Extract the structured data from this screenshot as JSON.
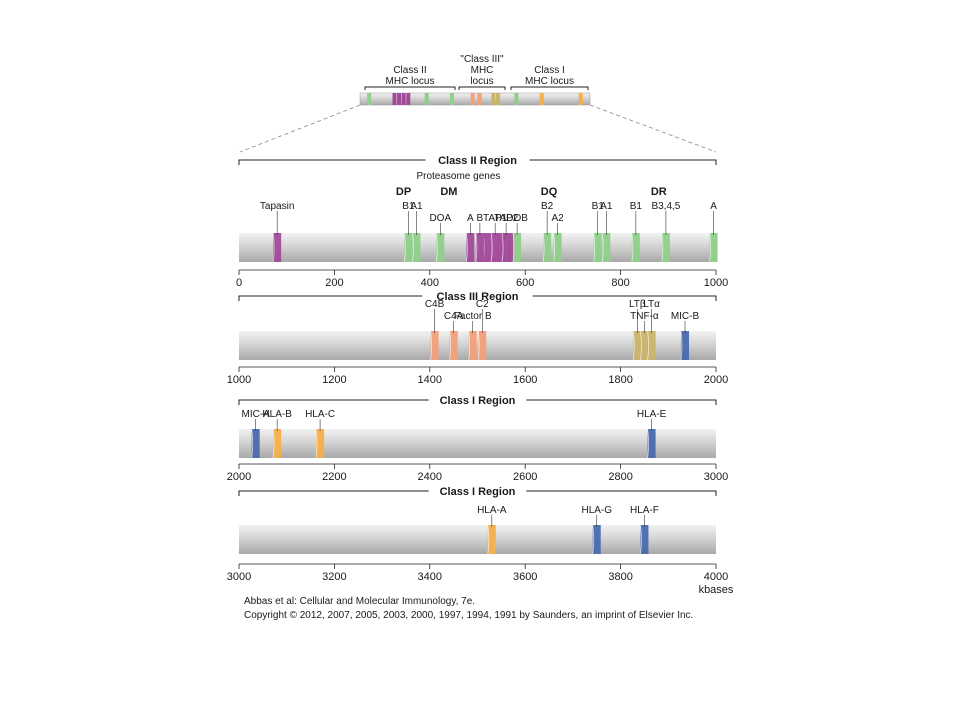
{
  "colors": {
    "green": "#8fd08a",
    "purple": "#a24a9a",
    "salmon": "#f0a07a",
    "khaki": "#c8b46a",
    "orange": "#f4b04a",
    "blue": "#4a6ab0",
    "chromosome": "#d9d9d9",
    "text": "#1a1a1a"
  },
  "overview": {
    "class2_label": [
      "Class II",
      "MHC locus"
    ],
    "class3_label": [
      "\"Class III\"",
      "MHC",
      "locus"
    ],
    "class1_label": [
      "Class I",
      "MHC locus"
    ],
    "bands": [
      {
        "color": "green",
        "pos": 0.04
      },
      {
        "color": "purple",
        "pos": 0.15
      },
      {
        "color": "purple",
        "pos": 0.17
      },
      {
        "color": "purple",
        "pos": 0.19
      },
      {
        "color": "purple",
        "pos": 0.21
      },
      {
        "color": "green",
        "pos": 0.29
      },
      {
        "color": "green",
        "pos": 0.4
      },
      {
        "color": "salmon",
        "pos": 0.49
      },
      {
        "color": "salmon",
        "pos": 0.52
      },
      {
        "color": "khaki",
        "pos": 0.58
      },
      {
        "color": "khaki",
        "pos": 0.6
      },
      {
        "color": "green",
        "pos": 0.68
      },
      {
        "color": "orange",
        "pos": 0.79
      },
      {
        "color": "orange",
        "pos": 0.96
      }
    ]
  },
  "regions": [
    {
      "title": "Class II Region",
      "range": [
        0,
        1000
      ],
      "ticks": [
        0,
        200,
        400,
        600,
        800,
        1000
      ],
      "genes": [
        {
          "label": "Tapasin",
          "pos": 80,
          "color": "purple",
          "row": 1
        },
        {
          "label": "B1",
          "pos": 355,
          "color": "green",
          "row": 1
        },
        {
          "label": "A1",
          "pos": 372,
          "color": "green",
          "row": 1
        },
        {
          "label": "DOA",
          "pos": 422,
          "color": "green",
          "row": 0
        },
        {
          "label": "A",
          "pos": 485,
          "color": "purple",
          "row": 0
        },
        {
          "label": "B",
          "pos": 505,
          "color": "purple",
          "row": 0
        },
        {
          "label": "TAP1",
          "pos": 537,
          "color": "purple",
          "row": 0
        },
        {
          "label": "TAP2",
          "pos": 560,
          "color": "purple",
          "row": 0
        },
        {
          "label": "DOB",
          "pos": 583,
          "color": "green",
          "row": 0
        },
        {
          "label": "B2",
          "pos": 646,
          "color": "green",
          "row": 1
        },
        {
          "label": "A2",
          "pos": 668,
          "color": "green",
          "row": 0
        },
        {
          "label": "B1",
          "pos": 752,
          "color": "green",
          "row": 1
        },
        {
          "label": "A1",
          "pos": 770,
          "color": "green",
          "row": 1
        },
        {
          "label": "B1",
          "pos": 832,
          "color": "green",
          "row": 1
        },
        {
          "label": "B3,4,5",
          "pos": 895,
          "color": "green",
          "row": 1
        },
        {
          "label": "A",
          "pos": 995,
          "color": "green",
          "row": 1
        }
      ],
      "extra_bands": [
        {
          "pos": 520,
          "color": "purple"
        },
        {
          "pos": 550,
          "color": "purple"
        },
        {
          "pos": 572,
          "color": "purple"
        }
      ],
      "group_labels": [
        {
          "label": "DP",
          "pos": 345,
          "bold": true
        },
        {
          "label": "DM",
          "pos": 440,
          "bold": true
        },
        {
          "label": "Proteasome genes",
          "pos": 460,
          "bold": false
        },
        {
          "label": "DQ",
          "pos": 650,
          "bold": true
        },
        {
          "label": "DR",
          "pos": 880,
          "bold": true
        }
      ]
    },
    {
      "title": "Class III Region",
      "range": [
        1000,
        2000
      ],
      "ticks": [
        1000,
        1200,
        1400,
        1600,
        1800,
        2000
      ],
      "genes": [
        {
          "label": "C4B",
          "pos": 1410,
          "color": "salmon",
          "row": 1
        },
        {
          "label": "C4A",
          "pos": 1450,
          "color": "salmon",
          "row": 0
        },
        {
          "label": "Factor B",
          "pos": 1490,
          "color": "salmon",
          "row": 0
        },
        {
          "label": "C2",
          "pos": 1510,
          "color": "salmon",
          "row": 1
        },
        {
          "label": "LTβ",
          "pos": 1835,
          "color": "khaki",
          "row": 1
        },
        {
          "label": "TNF-α",
          "pos": 1850,
          "color": "khaki",
          "row": 0
        },
        {
          "label": "LTα",
          "pos": 1865,
          "color": "khaki",
          "row": 1
        },
        {
          "label": "MIC-B",
          "pos": 1935,
          "color": "blue",
          "row": 0
        }
      ],
      "extra_bands": [],
      "group_labels": []
    },
    {
      "title": "Class I Region",
      "range": [
        2000,
        3000
      ],
      "ticks": [
        2000,
        2200,
        2400,
        2600,
        2800,
        3000
      ],
      "genes": [
        {
          "label": "MIC-A",
          "pos": 2035,
          "color": "blue",
          "row": 0
        },
        {
          "label": "HLA-B",
          "pos": 2080,
          "color": "orange",
          "row": 0
        },
        {
          "label": "HLA-C",
          "pos": 2170,
          "color": "orange",
          "row": 0
        },
        {
          "label": "HLA-E",
          "pos": 2865,
          "color": "blue",
          "row": 0
        }
      ],
      "extra_bands": [],
      "group_labels": []
    },
    {
      "title": "Class I Region",
      "range": [
        3000,
        4000
      ],
      "ticks": [
        3000,
        3200,
        3400,
        3600,
        3800,
        4000
      ],
      "genes": [
        {
          "label": "HLA-A",
          "pos": 3530,
          "color": "orange",
          "row": 0
        },
        {
          "label": "HLA-G",
          "pos": 3750,
          "color": "blue",
          "row": 0
        },
        {
          "label": "HLA-F",
          "pos": 3850,
          "color": "blue",
          "row": 0
        }
      ],
      "extra_bands": [],
      "group_labels": []
    }
  ],
  "unit_label": "kbases",
  "credit": {
    "line1": "Abbas et al: Cellular and Molecular Immunology, 7e.",
    "line2": "Copyright © 2012, 2007, 2005, 2003, 2000, 1997, 1994, 1991 by Saunders, an imprint of Elsevier Inc."
  }
}
